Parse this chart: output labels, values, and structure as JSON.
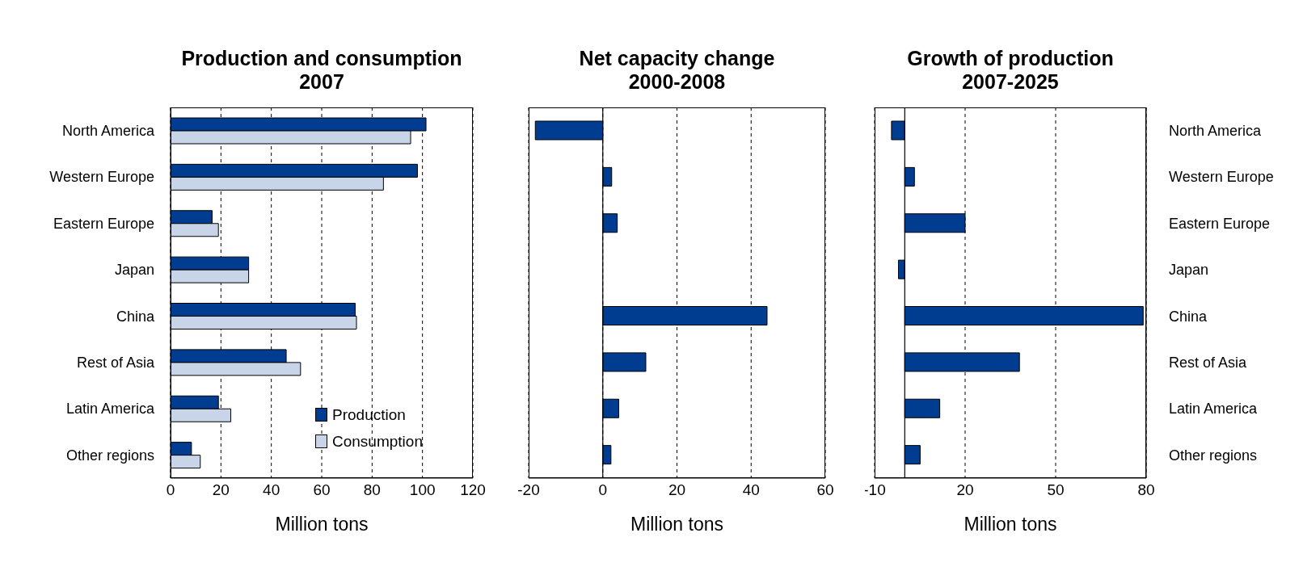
{
  "chart_data": [
    {
      "type": "bar",
      "orientation": "horizontal",
      "title": "Production and consumption\n2007",
      "xlabel": "Million tons",
      "categories": [
        "North America",
        "Western Europe",
        "Eastern Europe",
        "Japan",
        "China",
        "Rest of Asia",
        "Latin America",
        "Other regions"
      ],
      "series": [
        {
          "name": "Production",
          "color": "#003c8f",
          "values": [
            101.4,
            98,
            16.5,
            31,
            73.3,
            45.9,
            19,
            8.3
          ]
        },
        {
          "name": "Consumption",
          "color": "#c8d4e8",
          "values": [
            95.3,
            84.5,
            19,
            31,
            73.8,
            51.6,
            23.9,
            11.8
          ]
        }
      ],
      "xlim": [
        0,
        120
      ],
      "xticks": [
        0,
        20,
        40,
        60,
        80,
        100,
        120
      ],
      "grid": "x",
      "legend": "bottom right"
    },
    {
      "type": "bar",
      "orientation": "horizontal",
      "title": "Net capacity change\n2000-2008",
      "xlabel": "Million tons",
      "categories": [
        null,
        null,
        null,
        null,
        null,
        null,
        null,
        null
      ],
      "series": [
        {
          "color": "#003c8f",
          "values": [
            -18.2,
            2.4,
            3.9,
            0,
            44.3,
            11.6,
            4.3,
            2.2
          ]
        }
      ],
      "xlim": [
        -20,
        60
      ],
      "xticks": [
        -20,
        0,
        20,
        40,
        60
      ],
      "grid": "x",
      "tick_labels": "x",
      "ref_lines": [
        {
          "axis": "x",
          "value": 0
        }
      ]
    },
    {
      "type": "bar",
      "orientation": "horizontal",
      "title": "Growth of production\n2007-2025",
      "xlabel": "Million tons",
      "categories": [
        "North America",
        "Western Europe",
        "Eastern Europe",
        "Japan",
        "China",
        "Rest of Asia",
        "Latin America",
        "Other regions"
      ],
      "series": [
        {
          "color": "#003c8f",
          "values": [
            -4.4,
            3.2,
            20,
            -2.1,
            79,
            38,
            11.6,
            5.1
          ]
        }
      ],
      "xlim": [
        -10,
        80
      ],
      "xticks": [
        -10,
        20,
        50,
        80
      ],
      "grid": "x",
      "ref_lines": [
        {
          "axis": "x",
          "value": 0
        }
      ]
    }
  ]
}
